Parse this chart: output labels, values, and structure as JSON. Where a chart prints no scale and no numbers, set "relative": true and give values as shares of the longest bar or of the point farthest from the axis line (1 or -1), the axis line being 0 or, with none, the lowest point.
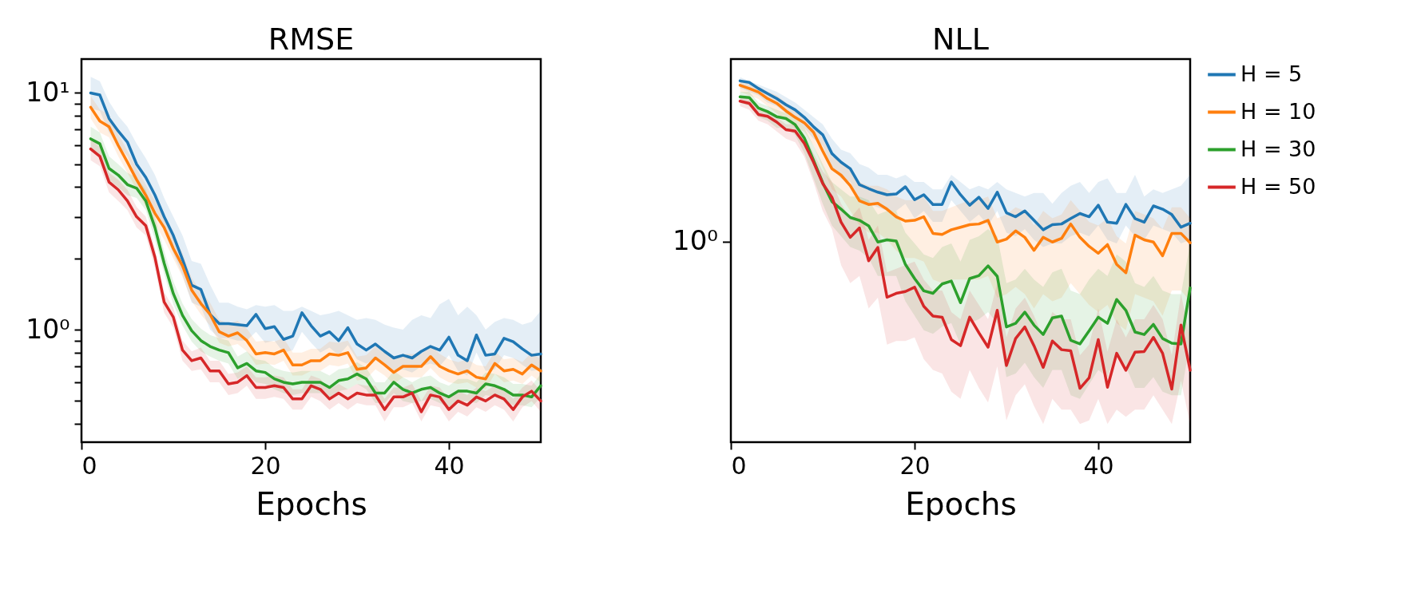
{
  "chart_data": [
    {
      "type": "line",
      "title": "RMSE",
      "xlabel": "Epochs",
      "log": true,
      "grid": false,
      "legend": false,
      "line_style": "solid",
      "x": [
        1,
        2,
        3,
        4,
        5,
        6,
        7,
        8,
        9,
        10,
        11,
        12,
        13,
        14,
        15,
        16,
        17,
        18,
        19,
        20,
        21,
        22,
        23,
        24,
        25,
        26,
        27,
        28,
        29,
        30,
        31,
        32,
        33,
        34,
        35,
        36,
        37,
        38,
        39,
        40,
        41,
        42,
        43,
        44,
        45,
        46,
        47,
        48,
        49,
        50
      ],
      "xlim": [
        0,
        50
      ],
      "xticks": [
        0,
        20,
        40
      ],
      "ylim": [
        0.335,
        13.9
      ],
      "yticks": [
        {
          "value": 0.4,
          "label": null
        },
        {
          "value": 0.5,
          "label": null
        },
        {
          "value": 0.6,
          "label": null
        },
        {
          "value": 0.7,
          "label": null
        },
        {
          "value": 0.8,
          "label": null
        },
        {
          "value": 0.9,
          "label": null
        },
        {
          "value": 1,
          "label": "10⁰"
        },
        {
          "value": 2,
          "label": null
        },
        {
          "value": 3,
          "label": null
        },
        {
          "value": 4,
          "label": null
        },
        {
          "value": 5,
          "label": null
        },
        {
          "value": 6,
          "label": null
        },
        {
          "value": 7,
          "label": null
        },
        {
          "value": 8,
          "label": null
        },
        {
          "value": 9,
          "label": null
        },
        {
          "value": 10,
          "label": "10¹"
        }
      ],
      "series": [
        {
          "color": "#1f77b4",
          "values": [
            10,
            9.8,
            7.8,
            6.9,
            6.2,
            5.0,
            4.4,
            3.7,
            3.0,
            2.5,
            1.98,
            1.54,
            1.48,
            1.16,
            1.06,
            1.06,
            1.05,
            1.04,
            1.16,
            1.01,
            1.03,
            0.91,
            0.94,
            1.18,
            1.04,
            0.94,
            0.98,
            0.9,
            1.02,
            0.87,
            0.82,
            0.87,
            0.81,
            0.76,
            0.78,
            0.76,
            0.81,
            0.85,
            0.82,
            0.93,
            0.78,
            0.74,
            0.95,
            0.78,
            0.79,
            0.92,
            0.89,
            0.83,
            0.78,
            0.79
          ],
          "upper": [
            11.7,
            11.2,
            9.2,
            8.0,
            7.2,
            6.1,
            5.3,
            4.5,
            3.6,
            3.0,
            2.5,
            1.95,
            1.9,
            1.55,
            1.3,
            1.3,
            1.25,
            1.22,
            1.27,
            1.25,
            1.27,
            1.2,
            1.2,
            1.25,
            1.2,
            1.15,
            1.17,
            1.2,
            1.15,
            1.1,
            1.12,
            1.1,
            1.05,
            1.02,
            1.0,
            1.1,
            1.15,
            1.12,
            1.28,
            1.35,
            1.15,
            1.25,
            1.15,
            1.0,
            1.08,
            1.12,
            1.1,
            1.05,
            1.08,
            1.2
          ],
          "lower": [
            8.6,
            8.4,
            6.8,
            6.0,
            5.4,
            4.4,
            3.8,
            3.2,
            2.6,
            2.1,
            1.7,
            1.3,
            1.25,
            1.0,
            0.92,
            0.92,
            0.9,
            0.9,
            0.98,
            0.88,
            0.9,
            0.8,
            0.82,
            0.98,
            0.88,
            0.8,
            0.84,
            0.78,
            0.86,
            0.75,
            0.72,
            0.75,
            0.7,
            0.67,
            0.68,
            0.66,
            0.7,
            0.72,
            0.7,
            0.78,
            0.67,
            0.64,
            0.8,
            0.67,
            0.68,
            0.78,
            0.76,
            0.71,
            0.67,
            0.68
          ]
        },
        {
          "color": "#ff7f0e",
          "values": [
            8.7,
            7.6,
            7.2,
            6.0,
            5.1,
            4.3,
            3.7,
            3.1,
            2.7,
            2.2,
            1.86,
            1.47,
            1.29,
            1.16,
            0.98,
            0.94,
            0.97,
            0.9,
            0.79,
            0.8,
            0.79,
            0.82,
            0.71,
            0.71,
            0.74,
            0.74,
            0.79,
            0.78,
            0.8,
            0.68,
            0.69,
            0.76,
            0.71,
            0.66,
            0.7,
            0.7,
            0.7,
            0.77,
            0.7,
            0.67,
            0.65,
            0.67,
            0.63,
            0.62,
            0.72,
            0.67,
            0.68,
            0.65,
            0.71,
            0.67
          ],
          "upper": [
            9.7,
            8.5,
            8.1,
            6.7,
            5.7,
            4.8,
            4.1,
            3.5,
            3.0,
            2.5,
            2.1,
            1.65,
            1.45,
            1.3,
            1.1,
            1.06,
            1.09,
            1.01,
            0.89,
            0.9,
            0.89,
            0.92,
            0.8,
            0.8,
            0.83,
            0.83,
            0.89,
            0.88,
            0.9,
            0.77,
            0.78,
            0.85,
            0.8,
            0.75,
            0.79,
            0.79,
            0.79,
            0.86,
            0.79,
            0.75,
            0.73,
            0.75,
            0.71,
            0.7,
            0.81,
            0.75,
            0.76,
            0.73,
            0.8,
            0.75
          ],
          "lower": [
            7.8,
            6.8,
            6.5,
            5.4,
            4.6,
            3.9,
            3.3,
            2.8,
            2.4,
            2.0,
            1.67,
            1.32,
            1.16,
            1.04,
            0.88,
            0.85,
            0.87,
            0.81,
            0.71,
            0.72,
            0.71,
            0.74,
            0.64,
            0.64,
            0.67,
            0.67,
            0.71,
            0.7,
            0.72,
            0.61,
            0.62,
            0.68,
            0.64,
            0.59,
            0.63,
            0.63,
            0.63,
            0.69,
            0.63,
            0.6,
            0.59,
            0.6,
            0.57,
            0.56,
            0.65,
            0.6,
            0.61,
            0.59,
            0.64,
            0.6
          ]
        },
        {
          "color": "#2ca02c",
          "values": [
            6.4,
            6.1,
            4.8,
            4.5,
            4.1,
            3.96,
            3.5,
            2.7,
            1.91,
            1.42,
            1.15,
            0.99,
            0.9,
            0.85,
            0.82,
            0.8,
            0.69,
            0.72,
            0.67,
            0.66,
            0.62,
            0.6,
            0.59,
            0.6,
            0.6,
            0.6,
            0.57,
            0.61,
            0.62,
            0.65,
            0.62,
            0.54,
            0.54,
            0.6,
            0.56,
            0.54,
            0.56,
            0.57,
            0.54,
            0.52,
            0.55,
            0.55,
            0.54,
            0.59,
            0.58,
            0.56,
            0.53,
            0.53,
            0.52,
            0.58
          ],
          "upper": [
            7.2,
            6.8,
            5.4,
            5.0,
            4.6,
            4.4,
            3.9,
            3.0,
            2.15,
            1.6,
            1.29,
            1.11,
            1.01,
            0.95,
            0.92,
            0.9,
            0.77,
            0.81,
            0.75,
            0.74,
            0.69,
            0.67,
            0.66,
            0.67,
            0.67,
            0.67,
            0.64,
            0.68,
            0.69,
            0.73,
            0.69,
            0.6,
            0.6,
            0.67,
            0.63,
            0.6,
            0.63,
            0.64,
            0.6,
            0.58,
            0.62,
            0.62,
            0.6,
            0.66,
            0.65,
            0.63,
            0.59,
            0.59,
            0.58,
            0.65
          ],
          "lower": [
            5.8,
            5.5,
            4.3,
            4.0,
            3.7,
            3.6,
            3.2,
            2.4,
            1.72,
            1.28,
            1.04,
            0.89,
            0.81,
            0.77,
            0.74,
            0.72,
            0.62,
            0.65,
            0.6,
            0.59,
            0.56,
            0.54,
            0.53,
            0.54,
            0.54,
            0.54,
            0.51,
            0.55,
            0.56,
            0.59,
            0.56,
            0.49,
            0.49,
            0.54,
            0.5,
            0.49,
            0.5,
            0.51,
            0.49,
            0.47,
            0.5,
            0.5,
            0.49,
            0.53,
            0.52,
            0.5,
            0.48,
            0.48,
            0.47,
            0.52
          ]
        },
        {
          "color": "#d62728",
          "values": [
            5.8,
            5.4,
            4.2,
            3.9,
            3.5,
            3.0,
            2.75,
            2.02,
            1.31,
            1.13,
            0.82,
            0.74,
            0.76,
            0.67,
            0.67,
            0.59,
            0.6,
            0.64,
            0.57,
            0.57,
            0.58,
            0.57,
            0.51,
            0.51,
            0.58,
            0.56,
            0.51,
            0.54,
            0.51,
            0.54,
            0.53,
            0.53,
            0.46,
            0.52,
            0.52,
            0.54,
            0.45,
            0.53,
            0.52,
            0.46,
            0.5,
            0.48,
            0.52,
            0.5,
            0.53,
            0.51,
            0.46,
            0.52,
            0.55,
            0.5
          ],
          "upper": [
            6.4,
            5.9,
            4.6,
            4.3,
            3.9,
            3.3,
            3.0,
            2.2,
            1.44,
            1.24,
            0.9,
            0.81,
            0.84,
            0.74,
            0.74,
            0.65,
            0.66,
            0.7,
            0.63,
            0.63,
            0.64,
            0.63,
            0.56,
            0.56,
            0.64,
            0.62,
            0.56,
            0.59,
            0.56,
            0.59,
            0.58,
            0.58,
            0.51,
            0.57,
            0.57,
            0.59,
            0.5,
            0.58,
            0.57,
            0.51,
            0.55,
            0.53,
            0.57,
            0.55,
            0.58,
            0.56,
            0.51,
            0.57,
            0.61,
            0.55
          ],
          "lower": [
            5.2,
            4.9,
            3.8,
            3.5,
            3.2,
            2.7,
            2.5,
            1.82,
            1.18,
            1.02,
            0.74,
            0.67,
            0.68,
            0.6,
            0.6,
            0.53,
            0.54,
            0.58,
            0.51,
            0.51,
            0.52,
            0.51,
            0.46,
            0.46,
            0.52,
            0.5,
            0.46,
            0.49,
            0.46,
            0.49,
            0.48,
            0.48,
            0.41,
            0.47,
            0.47,
            0.49,
            0.41,
            0.48,
            0.47,
            0.41,
            0.45,
            0.43,
            0.47,
            0.45,
            0.48,
            0.46,
            0.41,
            0.47,
            0.5,
            0.45
          ]
        }
      ]
    },
    {
      "type": "line",
      "title": "NLL",
      "xlabel": "Epochs",
      "relative": true,
      "grid": false,
      "legend": "right",
      "line_style": "solid",
      "x": [
        1,
        2,
        3,
        4,
        5,
        6,
        7,
        8,
        9,
        10,
        11,
        12,
        13,
        14,
        15,
        16,
        17,
        18,
        19,
        20,
        21,
        22,
        23,
        24,
        25,
        26,
        27,
        28,
        29,
        30,
        31,
        32,
        33,
        34,
        35,
        36,
        37,
        38,
        39,
        40,
        41,
        42,
        43,
        44,
        45,
        46,
        47,
        48,
        49,
        50
      ],
      "xlim": [
        0,
        50
      ],
      "xticks": [
        0,
        20,
        40
      ],
      "annotations": [
        "10⁰"
      ],
      "series": [
        {
          "name": "H = 5",
          "color": "#1f77b4",
          "values": [
            1.0,
            0.996,
            0.979,
            0.965,
            0.951,
            0.934,
            0.92,
            0.899,
            0.873,
            0.851,
            0.799,
            0.775,
            0.757,
            0.713,
            0.702,
            0.692,
            0.685,
            0.687,
            0.707,
            0.671,
            0.685,
            0.658,
            0.658,
            0.72,
            0.685,
            0.656,
            0.678,
            0.647,
            0.692,
            0.635,
            0.624,
            0.64,
            0.614,
            0.588,
            0.602,
            0.604,
            0.619,
            0.633,
            0.624,
            0.656,
            0.609,
            0.606,
            0.658,
            0.619,
            0.609,
            0.654,
            0.645,
            0.63,
            0.595,
            0.606
          ],
          "upper": [
            1.01,
            1.0,
            0.99,
            0.98,
            0.97,
            0.955,
            0.94,
            0.92,
            0.9,
            0.88,
            0.84,
            0.81,
            0.8,
            0.77,
            0.76,
            0.74,
            0.74,
            0.73,
            0.74,
            0.72,
            0.72,
            0.7,
            0.7,
            0.74,
            0.72,
            0.7,
            0.71,
            0.7,
            0.72,
            0.7,
            0.69,
            0.68,
            0.69,
            0.69,
            0.66,
            0.69,
            0.71,
            0.72,
            0.69,
            0.72,
            0.73,
            0.69,
            0.69,
            0.74,
            0.68,
            0.7,
            0.69,
            0.7,
            0.71,
            0.74
          ],
          "lower": [
            0.98,
            0.97,
            0.96,
            0.94,
            0.93,
            0.91,
            0.9,
            0.87,
            0.84,
            0.82,
            0.76,
            0.73,
            0.72,
            0.67,
            0.66,
            0.65,
            0.64,
            0.64,
            0.66,
            0.62,
            0.64,
            0.61,
            0.61,
            0.67,
            0.64,
            0.61,
            0.63,
            0.6,
            0.64,
            0.58,
            0.57,
            0.59,
            0.56,
            0.54,
            0.55,
            0.55,
            0.57,
            0.58,
            0.57,
            0.6,
            0.56,
            0.55,
            0.6,
            0.57,
            0.56,
            0.6,
            0.59,
            0.58,
            0.55,
            0.56
          ]
        },
        {
          "name": "H = 10",
          "color": "#ff7f0e",
          "values": [
            0.988,
            0.979,
            0.969,
            0.951,
            0.938,
            0.917,
            0.899,
            0.884,
            0.858,
            0.806,
            0.757,
            0.739,
            0.71,
            0.668,
            0.658,
            0.661,
            0.645,
            0.624,
            0.612,
            0.614,
            0.624,
            0.578,
            0.575,
            0.588,
            0.595,
            0.602,
            0.604,
            0.614,
            0.554,
            0.562,
            0.585,
            0.567,
            0.531,
            0.567,
            0.554,
            0.564,
            0.604,
            0.567,
            0.542,
            0.523,
            0.547,
            0.492,
            0.469,
            0.573,
            0.56,
            0.554,
            0.516,
            0.578,
            0.578,
            0.552
          ],
          "upper": [
            1.0,
            0.995,
            0.985,
            0.97,
            0.96,
            0.94,
            0.92,
            0.9,
            0.88,
            0.84,
            0.79,
            0.78,
            0.75,
            0.72,
            0.71,
            0.71,
            0.7,
            0.68,
            0.67,
            0.67,
            0.68,
            0.64,
            0.64,
            0.65,
            0.66,
            0.67,
            0.67,
            0.68,
            0.62,
            0.63,
            0.65,
            0.64,
            0.6,
            0.64,
            0.62,
            0.63,
            0.67,
            0.64,
            0.61,
            0.6,
            0.62,
            0.57,
            0.55,
            0.64,
            0.63,
            0.62,
            0.59,
            0.65,
            0.65,
            0.62
          ],
          "lower": [
            0.97,
            0.96,
            0.95,
            0.93,
            0.91,
            0.89,
            0.87,
            0.86,
            0.82,
            0.76,
            0.7,
            0.68,
            0.64,
            0.6,
            0.58,
            0.58,
            0.56,
            0.53,
            0.51,
            0.51,
            0.5,
            0.45,
            0.44,
            0.45,
            0.45,
            0.45,
            0.45,
            0.46,
            0.4,
            0.41,
            0.43,
            0.41,
            0.37,
            0.41,
            0.39,
            0.4,
            0.44,
            0.41,
            0.38,
            0.36,
            0.38,
            0.33,
            0.31,
            0.41,
            0.4,
            0.39,
            0.35,
            0.42,
            0.42,
            0.39
          ]
        },
        {
          "name": "H = 30",
          "color": "#2ca02c",
          "values": [
            0.956,
            0.954,
            0.925,
            0.915,
            0.901,
            0.896,
            0.879,
            0.842,
            0.78,
            0.718,
            0.666,
            0.645,
            0.622,
            0.614,
            0.599,
            0.554,
            0.56,
            0.557,
            0.492,
            0.453,
            0.419,
            0.412,
            0.438,
            0.446,
            0.386,
            0.453,
            0.461,
            0.488,
            0.459,
            0.319,
            0.329,
            0.36,
            0.324,
            0.298,
            0.344,
            0.349,
            0.282,
            0.272,
            0.308,
            0.346,
            0.329,
            0.395,
            0.365,
            0.305,
            0.298,
            0.326,
            0.287,
            0.274,
            0.272,
            0.427
          ],
          "upper": [
            0.97,
            0.97,
            0.94,
            0.93,
            0.92,
            0.91,
            0.9,
            0.87,
            0.82,
            0.77,
            0.72,
            0.7,
            0.68,
            0.68,
            0.67,
            0.63,
            0.64,
            0.64,
            0.58,
            0.55,
            0.52,
            0.51,
            0.54,
            0.55,
            0.5,
            0.56,
            0.57,
            0.59,
            0.57,
            0.44,
            0.45,
            0.48,
            0.45,
            0.43,
            0.47,
            0.48,
            0.42,
            0.41,
            0.45,
            0.48,
            0.46,
            0.52,
            0.5,
            0.44,
            0.43,
            0.46,
            0.42,
            0.41,
            0.41,
            0.55
          ],
          "lower": [
            0.94,
            0.93,
            0.9,
            0.89,
            0.87,
            0.87,
            0.85,
            0.8,
            0.73,
            0.66,
            0.6,
            0.57,
            0.54,
            0.53,
            0.51,
            0.46,
            0.46,
            0.46,
            0.39,
            0.35,
            0.31,
            0.3,
            0.32,
            0.33,
            0.27,
            0.33,
            0.34,
            0.36,
            0.33,
            0.18,
            0.19,
            0.22,
            0.18,
            0.15,
            0.2,
            0.2,
            0.13,
            0.12,
            0.16,
            0.2,
            0.18,
            0.25,
            0.21,
            0.15,
            0.15,
            0.18,
            0.14,
            0.13,
            0.13,
            0.28
          ]
        },
        {
          "name": "H = 50",
          "color": "#d62728",
          "values": [
            0.944,
            0.938,
            0.907,
            0.902,
            0.886,
            0.865,
            0.861,
            0.827,
            0.775,
            0.716,
            0.678,
            0.609,
            0.567,
            0.593,
            0.502,
            0.539,
            0.401,
            0.412,
            0.417,
            0.429,
            0.376,
            0.349,
            0.346,
            0.284,
            0.267,
            0.346,
            0.303,
            0.263,
            0.365,
            0.212,
            0.287,
            0.319,
            0.267,
            0.207,
            0.28,
            0.256,
            0.253,
            0.149,
            0.178,
            0.284,
            0.152,
            0.246,
            0.199,
            0.249,
            0.251,
            0.29,
            0.246,
            0.147,
            0.324,
            0.199
          ],
          "upper": [
            0.96,
            0.95,
            0.92,
            0.92,
            0.9,
            0.88,
            0.88,
            0.85,
            0.8,
            0.75,
            0.72,
            0.66,
            0.62,
            0.65,
            0.56,
            0.6,
            0.47,
            0.48,
            0.49,
            0.5,
            0.45,
            0.42,
            0.42,
            0.36,
            0.34,
            0.42,
            0.38,
            0.34,
            0.44,
            0.29,
            0.37,
            0.4,
            0.35,
            0.29,
            0.36,
            0.34,
            0.34,
            0.24,
            0.27,
            0.37,
            0.25,
            0.34,
            0.29,
            0.34,
            0.34,
            0.38,
            0.34,
            0.24,
            0.41,
            0.29
          ],
          "lower": [
            0.93,
            0.92,
            0.89,
            0.88,
            0.86,
            0.84,
            0.83,
            0.79,
            0.72,
            0.64,
            0.59,
            0.49,
            0.44,
            0.46,
            0.37,
            0.4,
            0.27,
            0.28,
            0.28,
            0.29,
            0.23,
            0.2,
            0.19,
            0.14,
            0.12,
            0.2,
            0.15,
            0.11,
            0.21,
            0.06,
            0.13,
            0.16,
            0.1,
            0.05,
            0.12,
            0.09,
            0.09,
            0.05,
            0.06,
            0.12,
            0.05,
            0.09,
            0.07,
            0.09,
            0.09,
            0.13,
            0.09,
            0.05,
            0.17,
            0.05
          ]
        }
      ]
    }
  ]
}
